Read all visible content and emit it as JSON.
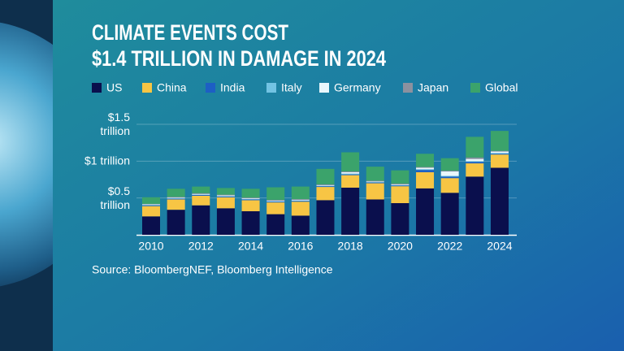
{
  "chart_data": {
    "type": "stacked-bar",
    "title": [
      "CLIMATE EVENTS COST",
      "$1.4 TRILLION IN DAMAGE IN 2024"
    ],
    "source": "Source: BloombergNEF, Bloomberg Intelligence",
    "categories": [
      "2010",
      null,
      "2012",
      null,
      "2014",
      null,
      "2016",
      null,
      "2018",
      null,
      "2020",
      null,
      "2022",
      null,
      "2024"
    ],
    "series": [
      {
        "name": "US",
        "color": "#0a0f4d",
        "values": [
          0.25,
          0.34,
          0.4,
          0.36,
          0.32,
          0.28,
          0.26,
          0.47,
          0.64,
          0.48,
          0.43,
          0.63,
          0.57,
          0.79,
          0.91
        ]
      },
      {
        "name": "China",
        "color": "#f7c544",
        "values": [
          0.14,
          0.14,
          0.13,
          0.15,
          0.15,
          0.16,
          0.19,
          0.18,
          0.17,
          0.22,
          0.23,
          0.22,
          0.2,
          0.18,
          0.18
        ]
      },
      {
        "name": "India",
        "color": "#1d5fc4",
        "values": [
          0.01,
          0.01,
          0.01,
          0.01,
          0.01,
          0.01,
          0.01,
          0.01,
          0.01,
          0.01,
          0.01,
          0.03,
          0.02,
          0.02,
          0.01
        ]
      },
      {
        "name": "Italy",
        "color": "#72c3e3",
        "values": [
          0.005,
          0.005,
          0.005,
          0.005,
          0.005,
          0.005,
          0.005,
          0.005,
          0.01,
          0.005,
          0.005,
          0.01,
          0.01,
          0.01,
          0.01
        ]
      },
      {
        "name": "Germany",
        "color": "#e9f7fc",
        "values": [
          0.01,
          0.01,
          0.01,
          0.01,
          0.01,
          0.01,
          0.01,
          0.01,
          0.02,
          0.01,
          0.01,
          0.02,
          0.06,
          0.03,
          0.02
        ]
      },
      {
        "name": "Japan",
        "color": "#8c919f",
        "values": [
          0.005,
          0.01,
          0.01,
          0.01,
          0.01,
          0.01,
          0.01,
          0.01,
          0.01,
          0.01,
          0.01,
          0.01,
          0.01,
          0.02,
          0.01
        ]
      },
      {
        "name": "Global",
        "color": "#3ba36b",
        "values": [
          0.09,
          0.11,
          0.09,
          0.09,
          0.12,
          0.17,
          0.17,
          0.21,
          0.26,
          0.19,
          0.18,
          0.18,
          0.17,
          0.28,
          0.27
        ]
      }
    ],
    "ylim": [
      0,
      1.5
    ],
    "yticks": [
      {
        "value": 0.5,
        "label": "$0.5 trillion"
      },
      {
        "value": 1,
        "label": "$1 trillion"
      },
      {
        "value": 1.5,
        "label": "$1.5 trillion"
      }
    ],
    "grid": true,
    "legend": "top-left"
  }
}
